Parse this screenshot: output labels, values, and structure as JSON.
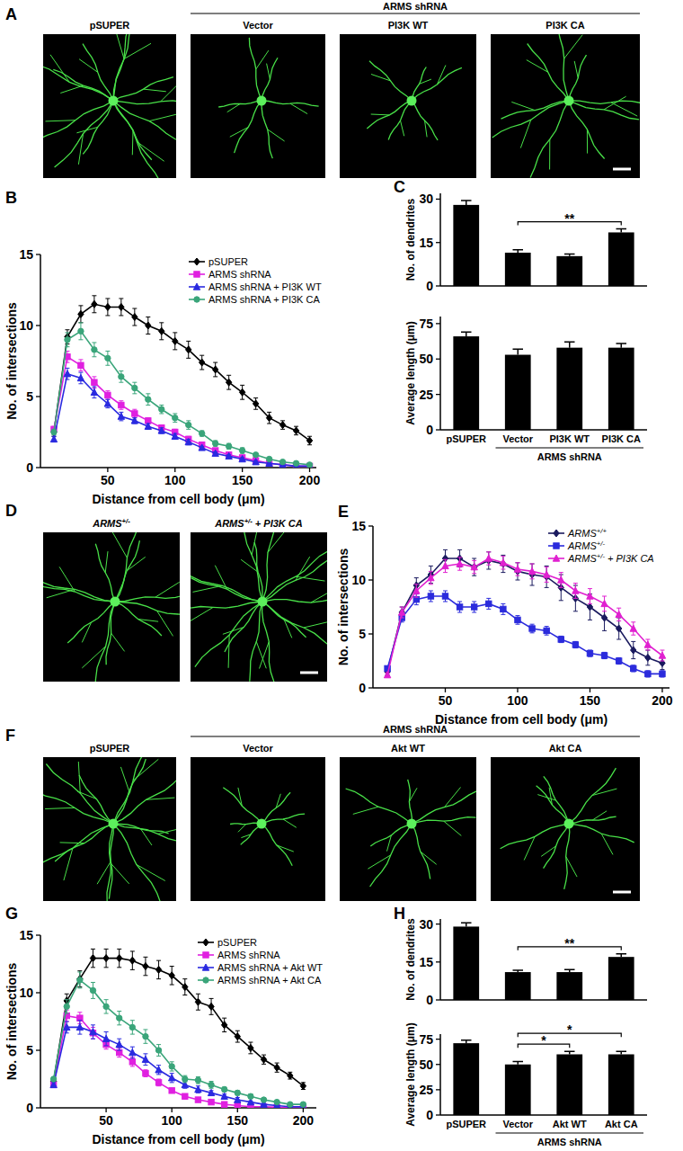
{
  "images": [
    {
      "panel": "A",
      "group_label": "ARMS shRNA",
      "group_span": [
        "Vector",
        "PI3K CA"
      ],
      "labels": [
        "pSUPER",
        "Vector",
        "PI3K WT",
        "PI3K CA"
      ]
    },
    {
      "panel": "D",
      "labels": [
        "ARMS+/-",
        "ARMS+/- + PI3K CA"
      ]
    },
    {
      "panel": "F",
      "group_label": "ARMS shRNA",
      "group_span": [
        "Vector",
        "Akt CA"
      ],
      "labels": [
        "pSUPER",
        "Vector",
        "Akt WT",
        "Akt CA"
      ]
    }
  ],
  "chart_data": [
    {
      "type": "line",
      "title": "B",
      "x_label": "Distance from cell body (μm)",
      "y_label": "No. of intersections",
      "x": [
        10,
        20,
        30,
        40,
        50,
        60,
        70,
        80,
        90,
        100,
        110,
        120,
        130,
        140,
        150,
        160,
        170,
        180,
        190,
        200
      ],
      "xlim": [
        0,
        205
      ],
      "xticks": [
        50,
        100,
        150,
        200
      ],
      "ylim": [
        0,
        15
      ],
      "yticks": [
        0,
        5,
        10,
        15
      ],
      "legend": "upper right",
      "series": [
        {
          "name": "pSUPER",
          "color": "#000000",
          "marker": "diamond",
          "values": [
            2.5,
            9.2,
            10.8,
            11.5,
            11.3,
            11.3,
            10.6,
            10.0,
            9.6,
            8.9,
            8.3,
            7.4,
            6.9,
            6.0,
            5.3,
            4.5,
            3.5,
            3.0,
            2.6,
            1.9
          ],
          "errors": [
            0.3,
            0.5,
            0.6,
            0.6,
            0.6,
            0.6,
            0.6,
            0.6,
            0.6,
            0.6,
            0.6,
            0.5,
            0.5,
            0.5,
            0.5,
            0.4,
            0.4,
            0.3,
            0.3,
            0.3
          ]
        },
        {
          "name": "ARMS shRNA",
          "color": "#e020e0",
          "marker": "square",
          "values": [
            2.7,
            7.8,
            7.2,
            6.0,
            5.1,
            4.4,
            3.8,
            3.3,
            2.8,
            2.5,
            2.0,
            1.6,
            1.2,
            0.9,
            0.7,
            0.5,
            0.3,
            0.2,
            0.1,
            0.1
          ],
          "errors": [
            0.2,
            0.4,
            0.4,
            0.4,
            0.3,
            0.3,
            0.3,
            0.2,
            0.2,
            0.2,
            0.2,
            0.2,
            0.1,
            0.1,
            0.1,
            0.1,
            0.1,
            0.05,
            0.05,
            0.05
          ]
        },
        {
          "name": "ARMS shRNA + PI3K WT",
          "color": "#2a2ae0",
          "marker": "triangle",
          "values": [
            2.0,
            6.6,
            6.3,
            5.3,
            4.5,
            3.6,
            3.3,
            2.9,
            2.6,
            2.2,
            1.8,
            1.4,
            1.0,
            0.8,
            0.6,
            0.4,
            0.3,
            0.2,
            0.1,
            0.1
          ],
          "errors": [
            0.2,
            0.4,
            0.4,
            0.4,
            0.3,
            0.3,
            0.2,
            0.2,
            0.2,
            0.2,
            0.2,
            0.1,
            0.1,
            0.1,
            0.1,
            0.1,
            0.05,
            0.05,
            0.05,
            0.05
          ]
        },
        {
          "name": "ARMS shRNA + PI3K CA",
          "color": "#3aa57a",
          "marker": "circle",
          "values": [
            2.5,
            9.0,
            9.6,
            8.3,
            7.7,
            6.4,
            5.6,
            4.8,
            4.1,
            3.5,
            3.0,
            2.4,
            1.7,
            1.5,
            1.2,
            0.9,
            0.6,
            0.4,
            0.3,
            0.2
          ],
          "errors": [
            0.2,
            0.5,
            0.6,
            0.5,
            0.5,
            0.4,
            0.4,
            0.4,
            0.3,
            0.3,
            0.3,
            0.2,
            0.2,
            0.2,
            0.2,
            0.1,
            0.1,
            0.1,
            0.1,
            0.05
          ]
        }
      ]
    },
    {
      "type": "bar",
      "title": "C",
      "y_label": "No. of dendrites",
      "categories": [
        "pSUPER",
        "Vector",
        "PI3K WT",
        "PI3K CA"
      ],
      "values": [
        28,
        11.5,
        10.3,
        18.5
      ],
      "errors": [
        1.5,
        1.0,
        0.7,
        1.2
      ],
      "color": "#000000",
      "ylim": [
        0,
        32
      ],
      "yticks": [
        0,
        15,
        30
      ],
      "tick_labels": "y",
      "annotations": [
        {
          "kind": "significance",
          "text": "**",
          "span": [
            "Vector",
            "PI3K CA"
          ]
        }
      ]
    },
    {
      "type": "bar",
      "y_label": "Average length (μm)",
      "categories": [
        "pSUPER",
        "Vector",
        "PI3K WT",
        "PI3K CA"
      ],
      "values": [
        66,
        53,
        58,
        58
      ],
      "errors": [
        3,
        4,
        4,
        3
      ],
      "color": "#000000",
      "ylim": [
        0,
        80
      ],
      "yticks": [
        0,
        25,
        50,
        75
      ],
      "annotations": [
        {
          "kind": "group",
          "text": "ARMS shRNA",
          "span": [
            "Vector",
            "PI3K CA"
          ]
        }
      ]
    },
    {
      "type": "line",
      "title": "E",
      "x_label": "Distance from cell body (μm)",
      "y_label": "No. of intersections",
      "x": [
        10,
        20,
        30,
        40,
        50,
        60,
        70,
        80,
        90,
        100,
        110,
        120,
        130,
        140,
        150,
        160,
        170,
        180,
        190,
        200
      ],
      "xlim": [
        0,
        205
      ],
      "xticks": [
        50,
        100,
        150,
        200
      ],
      "ylim": [
        0,
        15
      ],
      "yticks": [
        0,
        5,
        10,
        15
      ],
      "legend": "upper right",
      "series": [
        {
          "name": "ARMS+/+",
          "color": "#1a1a5e",
          "marker": "diamond",
          "values": [
            1.5,
            7.0,
            9.5,
            10.5,
            12.0,
            12.0,
            11.2,
            11.8,
            11.5,
            10.8,
            10.5,
            10.3,
            9.3,
            8.3,
            7.5,
            6.5,
            5.5,
            3.5,
            2.8,
            2.3
          ],
          "errors": [
            0.3,
            0.5,
            0.7,
            0.8,
            0.8,
            0.8,
            0.8,
            0.8,
            0.8,
            0.8,
            1.0,
            1.0,
            1.2,
            1.2,
            1.2,
            1.2,
            1.0,
            0.8,
            0.7,
            0.6
          ]
        },
        {
          "name": "ARMS+/-",
          "color": "#2b2bdc",
          "marker": "square",
          "values": [
            1.8,
            6.5,
            8.2,
            8.5,
            8.5,
            7.5,
            7.5,
            7.8,
            7.3,
            6.3,
            5.5,
            5.3,
            4.5,
            4.0,
            3.2,
            3.0,
            2.5,
            1.8,
            1.3,
            1.3
          ],
          "errors": [
            0.2,
            0.4,
            0.5,
            0.5,
            0.5,
            0.5,
            0.5,
            0.5,
            0.5,
            0.4,
            0.4,
            0.4,
            0.3,
            0.3,
            0.3,
            0.3,
            0.3,
            0.3,
            0.3,
            0.3
          ]
        },
        {
          "name": "ARMS+/- + PI3K CA",
          "color": "#e020d0",
          "marker": "triangle",
          "values": [
            1.2,
            7.0,
            9.0,
            10.2,
            11.3,
            11.5,
            11.2,
            12.0,
            11.6,
            11.0,
            10.8,
            10.5,
            10.0,
            9.0,
            8.5,
            7.8,
            6.8,
            5.5,
            4.0,
            3.0
          ],
          "errors": [
            0.2,
            0.5,
            0.6,
            0.6,
            0.6,
            0.6,
            0.6,
            0.6,
            0.6,
            0.6,
            0.7,
            0.7,
            0.7,
            0.7,
            0.7,
            0.7,
            0.6,
            0.6,
            0.5,
            0.5
          ]
        }
      ]
    },
    {
      "type": "line",
      "title": "G",
      "x_label": "Distance from cell body (μm)",
      "y_label": "No. of intersections",
      "x": [
        10,
        20,
        30,
        40,
        50,
        60,
        70,
        80,
        90,
        100,
        110,
        120,
        130,
        140,
        150,
        160,
        170,
        180,
        190,
        200
      ],
      "xlim": [
        0,
        210
      ],
      "xticks": [
        50,
        100,
        150,
        200
      ],
      "ylim": [
        0,
        15
      ],
      "yticks": [
        0,
        5,
        10,
        15
      ],
      "legend": "upper right",
      "series": [
        {
          "name": "pSUPER",
          "color": "#000000",
          "marker": "diamond",
          "values": [
            2.3,
            9.3,
            11.2,
            13.0,
            13.0,
            13.0,
            12.8,
            12.3,
            12.0,
            11.5,
            10.5,
            9.2,
            8.8,
            7.2,
            6.2,
            5.2,
            4.2,
            3.5,
            2.8,
            1.9
          ],
          "errors": [
            0.3,
            0.6,
            0.7,
            0.8,
            0.8,
            0.8,
            0.8,
            0.8,
            0.8,
            0.8,
            0.7,
            0.7,
            0.7,
            0.6,
            0.5,
            0.5,
            0.4,
            0.4,
            0.3,
            0.3
          ]
        },
        {
          "name": "ARMS shRNA",
          "color": "#e020e0",
          "marker": "square",
          "values": [
            2.0,
            8.0,
            7.8,
            6.5,
            5.5,
            4.8,
            4.0,
            3.0,
            2.2,
            1.5,
            1.0,
            0.7,
            0.5,
            0.3,
            0.2,
            0.1,
            0.1,
            0.05,
            0,
            0
          ],
          "errors": [
            0.2,
            0.5,
            0.5,
            0.5,
            0.4,
            0.4,
            0.4,
            0.3,
            0.3,
            0.2,
            0.2,
            0.1,
            0.1,
            0.1,
            0.1,
            0.05,
            0.05,
            0.05,
            0,
            0
          ]
        },
        {
          "name": "ARMS shRNA + Akt WT",
          "color": "#2a2ae0",
          "marker": "triangle",
          "values": [
            2.0,
            7.0,
            7.0,
            6.6,
            6.0,
            5.5,
            4.8,
            4.2,
            3.3,
            2.6,
            2.0,
            1.6,
            1.3,
            1.0,
            0.7,
            0.5,
            0.3,
            0.2,
            0.1,
            0.1
          ],
          "errors": [
            0.2,
            0.5,
            0.6,
            0.6,
            0.6,
            0.5,
            0.5,
            0.5,
            0.4,
            0.4,
            0.3,
            0.3,
            0.2,
            0.2,
            0.2,
            0.1,
            0.1,
            0.1,
            0.05,
            0.05
          ]
        },
        {
          "name": "ARMS shRNA + Akt CA",
          "color": "#3aa57a",
          "marker": "circle",
          "values": [
            2.5,
            8.8,
            11.1,
            10.2,
            8.8,
            7.8,
            7.0,
            6.2,
            5.0,
            3.6,
            2.5,
            2.4,
            2.0,
            1.6,
            1.3,
            1.0,
            0.7,
            0.5,
            0.3,
            0.3
          ],
          "errors": [
            0.2,
            0.6,
            0.7,
            0.7,
            0.6,
            0.6,
            0.6,
            0.6,
            0.5,
            0.4,
            0.3,
            0.3,
            0.3,
            0.2,
            0.2,
            0.2,
            0.1,
            0.1,
            0.1,
            0.1
          ]
        }
      ]
    },
    {
      "type": "bar",
      "title": "H",
      "y_label": "No. of dendrites",
      "categories": [
        "pSUPER",
        "Vector",
        "Akt WT",
        "Akt CA"
      ],
      "values": [
        29,
        11,
        11,
        17
      ],
      "errors": [
        1.5,
        0.7,
        1.0,
        1.2
      ],
      "color": "#000000",
      "ylim": [
        0,
        32
      ],
      "yticks": [
        0,
        15,
        30
      ],
      "tick_labels": "y",
      "annotations": [
        {
          "kind": "significance",
          "text": "**",
          "span": [
            "Vector",
            "Akt CA"
          ]
        }
      ]
    },
    {
      "type": "bar",
      "y_label": "Average length (μm)",
      "categories": [
        "pSUPER",
        "Vector",
        "Akt WT",
        "Akt CA"
      ],
      "values": [
        71,
        50,
        60,
        60
      ],
      "errors": [
        3,
        3,
        3,
        3
      ],
      "color": "#000000",
      "ylim": [
        0,
        80
      ],
      "yticks": [
        0,
        25,
        50,
        75
      ],
      "annotations": [
        {
          "kind": "significance",
          "text": "*",
          "span": [
            "Vector",
            "Akt WT"
          ]
        },
        {
          "kind": "significance",
          "text": "*",
          "span": [
            "Vector",
            "Akt CA"
          ]
        },
        {
          "kind": "group",
          "text": "ARMS shRNA",
          "span": [
            "Vector",
            "Akt CA"
          ]
        }
      ]
    }
  ]
}
